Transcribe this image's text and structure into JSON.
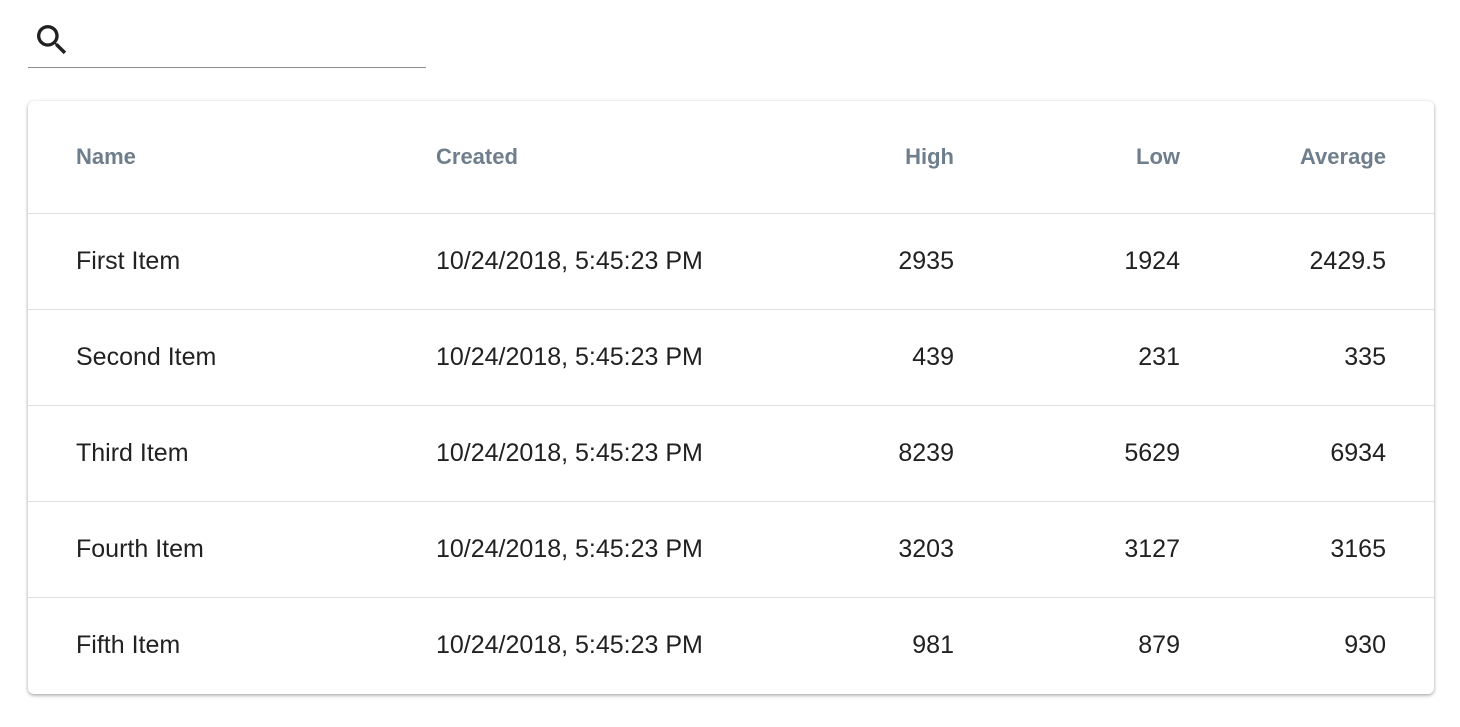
{
  "search": {
    "icon": "search-icon",
    "placeholder": "",
    "value": ""
  },
  "table": {
    "columns": {
      "name": "Name",
      "created": "Created",
      "high": "High",
      "low": "Low",
      "average": "Average"
    },
    "rows": [
      {
        "name": "First Item",
        "created": "10/24/2018, 5:45:23 PM",
        "high": "2935",
        "low": "1924",
        "average": "2429.5"
      },
      {
        "name": "Second Item",
        "created": "10/24/2018, 5:45:23 PM",
        "high": "439",
        "low": "231",
        "average": "335"
      },
      {
        "name": "Third Item",
        "created": "10/24/2018, 5:45:23 PM",
        "high": "8239",
        "low": "5629",
        "average": "6934"
      },
      {
        "name": "Fourth Item",
        "created": "10/24/2018, 5:45:23 PM",
        "high": "3203",
        "low": "3127",
        "average": "3165"
      },
      {
        "name": "Fifth Item",
        "created": "10/24/2018, 5:45:23 PM",
        "high": "981",
        "low": "879",
        "average": "930"
      }
    ]
  },
  "colors": {
    "header_text": "#6f7e8c",
    "body_text": "#212121",
    "divider": "#e0e0e0",
    "search_underline": "#8e8e8e"
  }
}
